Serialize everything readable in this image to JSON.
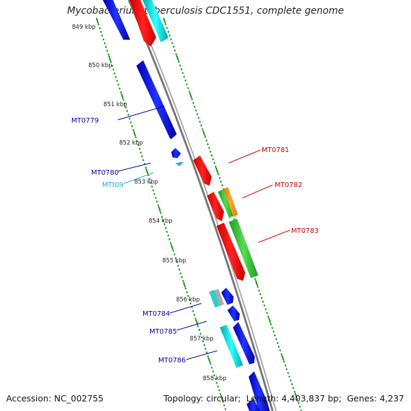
{
  "title": "Mycobacterium tuberculosis CDC1551, complete genome",
  "footer": {
    "accession_label": "Accession:",
    "accession": "NC_002755",
    "topology_label": "Topology:",
    "topology": "circular",
    "length_label": "Length:",
    "length": "4,403,837 bp",
    "genes_label": "Genes:",
    "genes": "4,237"
  },
  "ruler_labels": [
    "849 kbp",
    "850 kbp",
    "851 kbp",
    "852 kbp",
    "853 kbp",
    "854 kbp",
    "855 kbp",
    "856 kbp",
    "857 kbp",
    "858 kbp"
  ],
  "gene_labels": {
    "left": [
      "MT0779",
      "MT0780",
      "MTt09",
      "MT0784",
      "MT0785",
      "MT0786"
    ],
    "right": [
      "MT0781",
      "MT0782",
      "MT0783"
    ]
  },
  "colors": {
    "blue_gene": "#0000cc",
    "red_gene": "#ee0000",
    "green_gene": "#33bb33",
    "orange_gene": "#ff9900",
    "cyan_gene": "#00cccc",
    "trna": "#33aadd",
    "backbone": "#888888",
    "ruler": "#119911",
    "label_blue": "#0000aa",
    "label_red": "#cc0000",
    "label_cyan": "#22aacc"
  }
}
